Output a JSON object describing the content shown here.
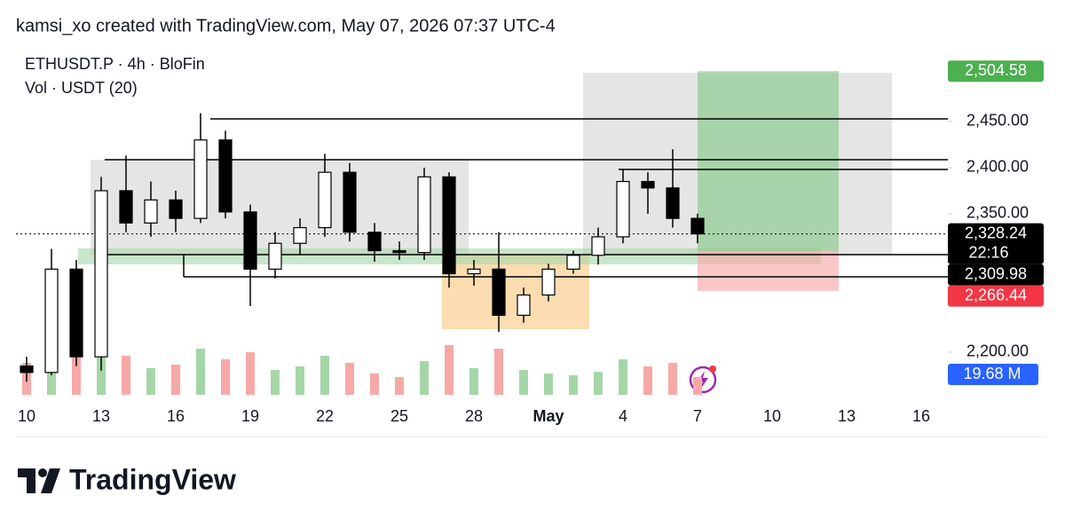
{
  "header": "kamsi_xo created with TradingView.com, May 07, 2026 07:37 UTC-4",
  "brand": "TradingView",
  "chart_data": {
    "type": "candlestick",
    "symbol": "ETHUSDT.P · 4h · BloFin",
    "volume_legend": "Vol · USDT (20)",
    "categories": [
      "10",
      null,
      null,
      "13",
      null,
      null,
      "16",
      null,
      null,
      "19",
      null,
      null,
      "22",
      null,
      null,
      "25",
      null,
      null,
      "28",
      null,
      null,
      "May",
      null,
      null,
      "4",
      null,
      null,
      "7",
      null,
      null,
      "10",
      null,
      null,
      "13",
      null,
      null,
      "16"
    ],
    "open": [
      2185,
      2178,
      2290,
      2195,
      2375,
      2340,
      2365,
      2345,
      2430,
      2352,
      2290,
      2318,
      2335,
      2395,
      2330,
      2310,
      2308,
      2390,
      2285,
      2290,
      2240,
      2262,
      2290,
      2305,
      2325,
      2385,
      2378,
      2345,
      null,
      null,
      null,
      null,
      null,
      null,
      null,
      null,
      null
    ],
    "high": [
      2195,
      2312,
      2300,
      2390,
      2413,
      2385,
      2375,
      2459,
      2440,
      2360,
      2330,
      2345,
      2415,
      2405,
      2340,
      2320,
      2400,
      2395,
      2300,
      2330,
      2270,
      2296,
      2310,
      2335,
      2398,
      2395,
      2420,
      2350,
      null,
      null,
      null,
      null,
      null,
      null,
      null,
      null,
      null
    ],
    "low": [
      2168,
      2175,
      2185,
      2180,
      2330,
      2325,
      2330,
      2340,
      2345,
      2250,
      2280,
      2305,
      2325,
      2320,
      2298,
      2300,
      2300,
      2270,
      2272,
      2222,
      2232,
      2255,
      2285,
      2295,
      2318,
      2350,
      2335,
      2318,
      null,
      null,
      null,
      null,
      null,
      null,
      null,
      null,
      null
    ],
    "close": [
      2178,
      2290,
      2195,
      2375,
      2340,
      2365,
      2345,
      2430,
      2352,
      2290,
      2318,
      2335,
      2395,
      2330,
      2310,
      2308,
      2390,
      2285,
      2290,
      2240,
      2262,
      2290,
      2305,
      2325,
      2385,
      2378,
      2345,
      2328.24,
      null,
      null,
      null,
      null,
      null,
      null,
      null,
      null,
      null
    ],
    "volume": [
      18,
      30,
      25,
      32,
      22,
      15,
      17,
      26,
      20,
      24,
      14,
      16,
      22,
      18,
      12,
      10,
      19,
      28,
      15,
      26,
      14,
      12,
      11,
      13,
      20,
      16,
      18,
      10,
      null,
      null,
      null,
      null,
      null,
      null,
      null,
      null,
      null
    ],
    "volume_ma_label": "19.68 M",
    "up_color": "#ffffff",
    "down_color": "#000000",
    "volume_up_color": "#a5d6a7",
    "volume_down_color": "#f7a9a7",
    "ylim": [
      2149,
      2524
    ],
    "yticks": [
      {
        "value": 2200,
        "label": "2,200.00"
      },
      {
        "value": 2350,
        "label": "2,350.00"
      },
      {
        "value": 2400,
        "label": "2,400.00"
      },
      {
        "value": 2450,
        "label": "2,450.00"
      }
    ],
    "price_levels": [
      {
        "value": 2504.58,
        "label": "2,504.58",
        "color": "#4caf50"
      },
      {
        "value": 2328.24,
        "label": "2,328.24",
        "color": "#000000",
        "countdown": "22:16"
      },
      {
        "value": 2309.98,
        "label": "2,309.98",
        "color": "#000000"
      },
      {
        "value": 2266.44,
        "label": "2,266.44",
        "color": "#f23645"
      }
    ]
  }
}
